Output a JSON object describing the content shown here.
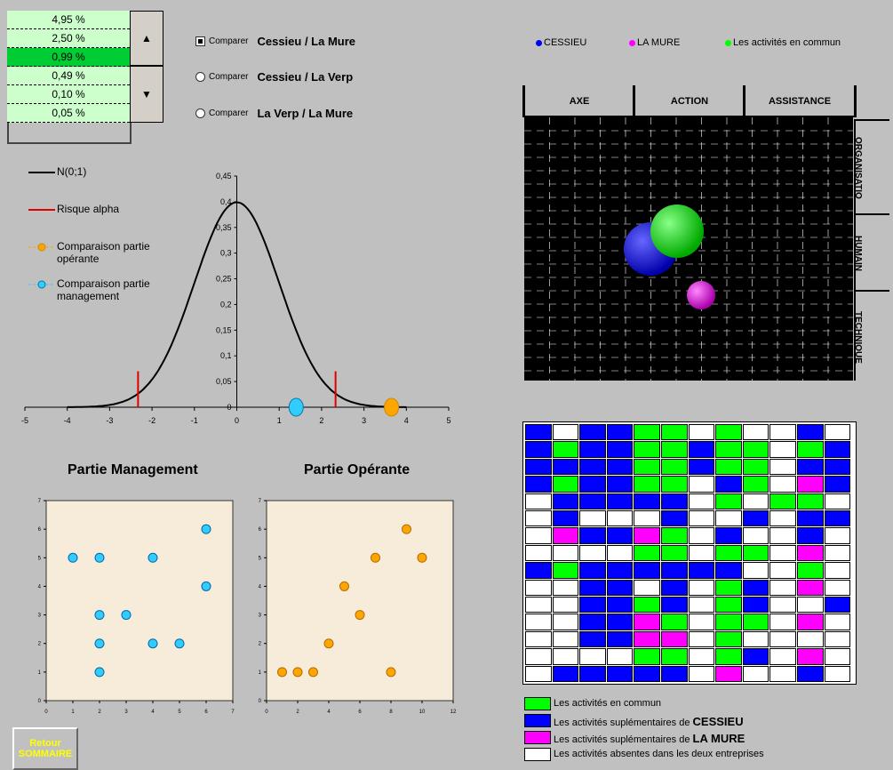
{
  "risk_list": {
    "items": [
      "4,95 %",
      "2,50 %",
      "0,99 %",
      "0,49 %",
      "0,10 %",
      "0,05 %"
    ],
    "selected_index": 2
  },
  "compare_options": [
    {
      "small": "Comparer",
      "pair": "Cessieu / La Mure",
      "checked": true
    },
    {
      "small": "Comparer",
      "pair": "Cessieu / La Verp",
      "checked": false
    },
    {
      "small": "Comparer",
      "pair": "La Verp / La Mure",
      "checked": false
    }
  ],
  "normal_legend": {
    "n01": "N(0;1)",
    "alpha": "Risque alpha",
    "operante": "Comparaison partie opérante",
    "management": "Comparaison partie management"
  },
  "colors": {
    "black": "#000000",
    "red": "#e00000",
    "orange": "#ffa500",
    "cyan": "#33ccff",
    "blue": "#0000ff",
    "green": "#00ff00",
    "magenta": "#ff00ff"
  },
  "chart_data": [
    {
      "type": "line",
      "name": "normal_curve",
      "x_ticks": [
        "-5",
        "-4",
        "-3",
        "-2",
        "-1",
        "0",
        "1",
        "2",
        "3",
        "4",
        "5"
      ],
      "y_ticks": [
        "0",
        "0,05",
        "0,1",
        "0,15",
        "0,2",
        "0,25",
        "0,3",
        "0,35",
        "0,4",
        "0,45"
      ],
      "xlim": [
        -5,
        5
      ],
      "ylim": [
        0,
        0.45
      ],
      "alpha_lines": [
        -2.33,
        2.33
      ],
      "points": [
        {
          "series": "management",
          "x": 1.4,
          "y": 0
        },
        {
          "series": "operante",
          "x": 3.65,
          "y": 0
        }
      ]
    },
    {
      "type": "scatter",
      "name": "management",
      "title": "Partie Management",
      "xlim": [
        0,
        7
      ],
      "ylim": [
        0,
        7
      ],
      "x_ticks": [
        "0",
        "1",
        "2",
        "3",
        "4",
        "5",
        "6",
        "7"
      ],
      "y_ticks": [
        "0",
        "1",
        "2",
        "3",
        "4",
        "5",
        "6",
        "7"
      ],
      "points": [
        [
          1,
          5
        ],
        [
          2,
          5
        ],
        [
          4,
          5
        ],
        [
          6,
          6
        ],
        [
          6,
          4
        ],
        [
          2,
          3
        ],
        [
          3,
          3
        ],
        [
          2,
          2
        ],
        [
          4,
          2
        ],
        [
          5,
          2
        ],
        [
          2,
          1
        ]
      ]
    },
    {
      "type": "scatter",
      "name": "operante",
      "title": "Partie Opérante",
      "xlim": [
        0,
        12
      ],
      "ylim": [
        0,
        7
      ],
      "x_ticks": [
        "0",
        "2",
        "4",
        "6",
        "8",
        "10",
        "12"
      ],
      "y_ticks": [
        "0",
        "1",
        "2",
        "3",
        "4",
        "5",
        "6",
        "7"
      ],
      "points": [
        [
          1,
          1
        ],
        [
          2,
          1
        ],
        [
          3,
          1
        ],
        [
          8,
          1
        ],
        [
          4,
          2
        ],
        [
          6,
          3
        ],
        [
          5,
          4
        ],
        [
          7,
          5
        ],
        [
          10,
          5
        ],
        [
          9,
          6
        ]
      ]
    }
  ],
  "bubble_legend": {
    "cessieu": "CESSIEU",
    "lamure": "LA MURE",
    "commun": "Les activités en commun"
  },
  "matrix": {
    "cols": [
      "AXE",
      "ACTION",
      "ASSISTANCE"
    ],
    "rows": [
      "ORGANISATIO",
      "HUMAIN",
      "TECHNIQUE"
    ]
  },
  "grid_rows": [
    "BWBBGGWGWWBW",
    "BGBBGGBGGWGB",
    "BBBBGGBGGWBB",
    "BGBBGGWBGWMB",
    "WBBBBBWGWGGW",
    "WBWWWBWWBWBB",
    "WMBBMGWBWWBW",
    "WWWWGGWGGWMW",
    "BGBBBBBBWWGW",
    "WWBBWBWGBWMW",
    "WWBBGBWGBWWB",
    "WWBBMGWGGWMW",
    "WWBBMMWGWWWW",
    "WWWWGGWGBWMW",
    "WBBBBBWMWWBW"
  ],
  "grid_legend": [
    {
      "color": "G",
      "text": "Les activités en commun",
      "bold": ""
    },
    {
      "color": "B",
      "text": "Les activités suplémentaires de ",
      "bold": "CESSIEU"
    },
    {
      "color": "M",
      "text": "Les activités suplémentaires de ",
      "bold": "LA MURE"
    },
    {
      "color": "W",
      "text": "Les activités absentes dans les deux entreprises",
      "bold": ""
    }
  ],
  "retour": {
    "line1": "Retour",
    "line2": "SOMMAIRE"
  }
}
